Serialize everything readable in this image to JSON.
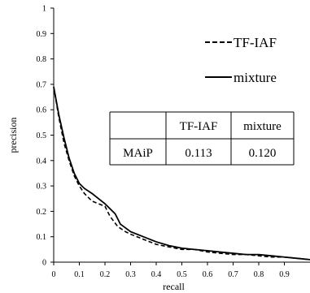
{
  "chart_data": {
    "type": "line",
    "xlabel": "recall",
    "ylabel": "precision",
    "xlim": [
      0,
      1
    ],
    "ylim": [
      0,
      1
    ],
    "xticks": [
      "0",
      "0.1",
      "0.2",
      "0.3",
      "0.4",
      "0.5",
      "0.6",
      "0.7",
      "0.8",
      "0.9"
    ],
    "yticks": [
      "0",
      "0.1",
      "0.2",
      "0.3",
      "0.4",
      "0.5",
      "0.6",
      "0.7",
      "0.8",
      "0.9",
      "1"
    ],
    "grid": false,
    "legend_position": "top-right",
    "series": [
      {
        "name": "TF-IAF",
        "style": "dashed",
        "color": "#000000",
        "x": [
          0,
          0.02,
          0.04,
          0.06,
          0.08,
          0.1,
          0.12,
          0.15,
          0.2,
          0.22,
          0.25,
          0.28,
          0.3,
          0.35,
          0.4,
          0.45,
          0.5,
          0.55,
          0.6,
          0.65,
          0.7,
          0.75,
          0.8,
          0.85,
          0.9,
          0.95,
          1.0
        ],
        "y": [
          0.69,
          0.57,
          0.47,
          0.4,
          0.34,
          0.3,
          0.27,
          0.24,
          0.22,
          0.18,
          0.14,
          0.12,
          0.11,
          0.09,
          0.07,
          0.06,
          0.05,
          0.05,
          0.04,
          0.035,
          0.03,
          0.03,
          0.025,
          0.02,
          0.02,
          0.015,
          0.01
        ]
      },
      {
        "name": "mixture",
        "style": "solid",
        "color": "#000000",
        "x": [
          0,
          0.02,
          0.04,
          0.06,
          0.08,
          0.1,
          0.12,
          0.15,
          0.2,
          0.24,
          0.26,
          0.3,
          0.35,
          0.4,
          0.45,
          0.5,
          0.55,
          0.6,
          0.65,
          0.7,
          0.75,
          0.8,
          0.85,
          0.9,
          0.95,
          1.0
        ],
        "y": [
          0.69,
          0.58,
          0.49,
          0.41,
          0.35,
          0.31,
          0.29,
          0.27,
          0.23,
          0.19,
          0.15,
          0.12,
          0.1,
          0.08,
          0.065,
          0.055,
          0.05,
          0.045,
          0.04,
          0.035,
          0.03,
          0.03,
          0.025,
          0.02,
          0.015,
          0.01
        ]
      }
    ],
    "table": {
      "headers": [
        "",
        "TF-IAF",
        "mixture"
      ],
      "rows": [
        [
          "MAiP",
          "0.113",
          "0.120"
        ]
      ]
    }
  }
}
